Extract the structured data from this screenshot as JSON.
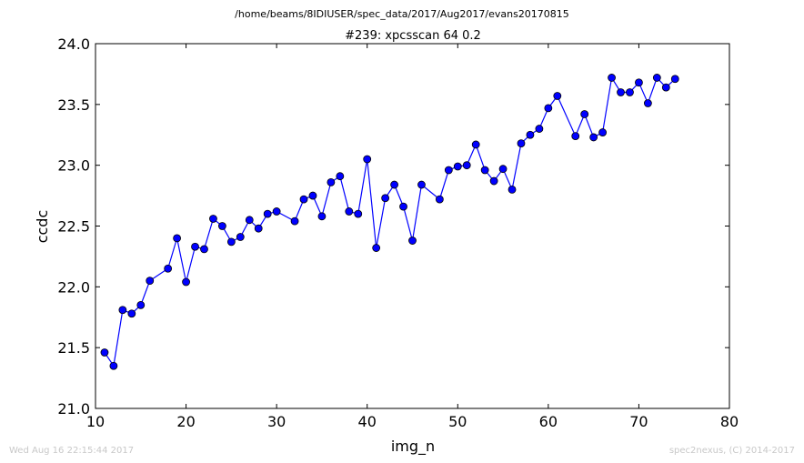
{
  "chart_data": {
    "type": "line",
    "suptitle": "/home/beams/8IDIUSER/spec_data/2017/Aug2017/evans20170815",
    "title": "#239: xpcsscan 64 0.2",
    "xlabel": "img_n",
    "ylabel": "ccdc",
    "xlim": [
      10,
      80
    ],
    "ylim": [
      21.0,
      24.0
    ],
    "xticks": [
      "10",
      "20",
      "30",
      "40",
      "50",
      "60",
      "70",
      "80"
    ],
    "yticks": [
      "21.0",
      "21.5",
      "22.0",
      "22.5",
      "23.0",
      "23.5",
      "24.0"
    ],
    "grid": false,
    "series": [
      {
        "color": "#0000ff",
        "marker": "circle",
        "x": [
          11,
          12,
          13,
          14,
          15,
          16,
          18,
          19,
          20,
          21,
          22,
          23,
          24,
          25,
          26,
          27,
          28,
          29,
          30,
          32,
          33,
          34,
          35,
          36,
          37,
          38,
          39,
          40,
          41,
          42,
          43,
          44,
          45,
          46,
          48,
          49,
          50,
          51,
          52,
          53,
          54,
          55,
          56,
          57,
          58,
          59,
          60,
          61,
          63,
          64,
          65,
          66,
          67,
          68,
          69,
          70,
          71,
          72,
          73,
          74
        ],
        "y": [
          21.46,
          21.35,
          21.81,
          21.78,
          21.85,
          22.05,
          22.15,
          22.4,
          22.04,
          22.33,
          22.31,
          22.56,
          22.5,
          22.37,
          22.41,
          22.55,
          22.48,
          22.6,
          22.62,
          22.54,
          22.72,
          22.75,
          22.58,
          22.86,
          22.91,
          22.62,
          22.6,
          23.05,
          22.32,
          22.73,
          22.84,
          22.66,
          22.38,
          22.84,
          22.72,
          22.96,
          22.99,
          23.0,
          23.17,
          22.96,
          22.87,
          22.97,
          22.8,
          23.18,
          23.25,
          23.3,
          23.47,
          23.57,
          23.24,
          23.42,
          23.23,
          23.27,
          23.72,
          23.6,
          23.6,
          23.68,
          23.51,
          23.72,
          23.64,
          23.71
        ]
      }
    ]
  },
  "footer": {
    "left": "Wed Aug 16 22:15:44 2017",
    "right": "spec2nexus, (C) 2014-2017"
  }
}
